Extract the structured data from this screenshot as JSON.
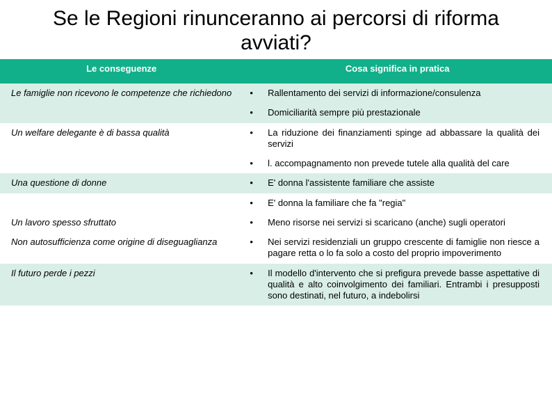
{
  "title": "Se le Regioni rinunceranno ai percorsi di riforma avviati?",
  "header": {
    "left": "Le conseguenze",
    "right": "Cosa significa in pratica"
  },
  "rows": [
    {
      "left": "Le famiglie non ricevono le competenze che richiedono",
      "bullet": "•",
      "right": "Rallentamento dei servizi di informazione/consulenza",
      "alt": true
    },
    {
      "left": "",
      "bullet": "•",
      "right": "Domiciliarità sempre più prestazionale",
      "alt": true
    },
    {
      "left": "Un welfare delegante è di bassa qualità",
      "bullet": "•",
      "right": "La riduzione dei finanziamenti spinge ad abbassare la qualità dei servizi",
      "alt": false
    },
    {
      "left": "",
      "bullet": "•",
      "right": "l. accompagnamento non prevede tutele alla qualità del care",
      "alt": false
    },
    {
      "left": "Una questione di donne",
      "bullet": "•",
      "right": "E' donna l'assistente familiare che assiste",
      "alt": true
    },
    {
      "left": "",
      "bullet": "•",
      "right": "E' donna la familiare che fa \"regia\"",
      "alt": false
    },
    {
      "left": "Un lavoro spesso sfruttato",
      "bullet": "•",
      "right": "Meno risorse nei servizi si scaricano (anche) sugli operatori",
      "alt": false
    },
    {
      "left": "Non autosufficienza come origine di diseguaglianza",
      "bullet": "•",
      "right": "Nei servizi residenziali un gruppo crescente di famiglie non riesce a pagare retta o lo fa solo a costo del proprio impoverimento",
      "alt": false
    },
    {
      "left": "Il futuro perde i pezzi",
      "bullet": "•",
      "right": "Il modello d'intervento che si prefigura prevede basse aspettative di qualità e alto coinvolgimento dei familiari. Entrambi i presupposti sono destinati, nel futuro, a indebolirsi",
      "alt": true
    }
  ],
  "colors": {
    "header_bg": "#12b08a",
    "alt_bg": "#d9eee6",
    "text": "#000000",
    "header_text": "#ffffff"
  }
}
